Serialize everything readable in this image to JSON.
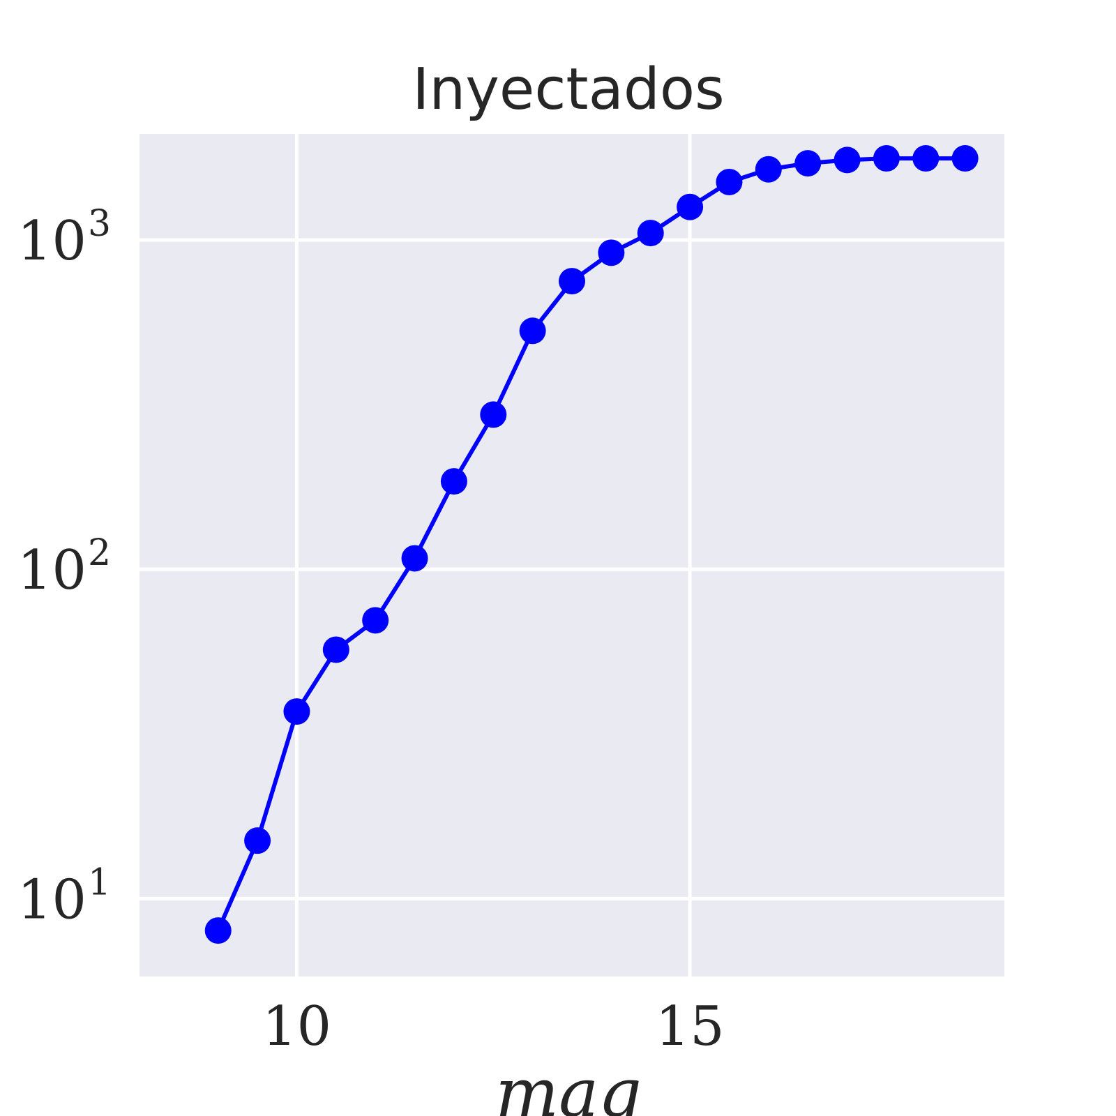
{
  "chart_data": {
    "type": "line",
    "title": "Inyectados",
    "xlabel": "mag",
    "ylabel": "",
    "yscale": "log",
    "xlim": [
      8,
      19
    ],
    "ylim": [
      5.8,
      2100
    ],
    "x_ticks": [
      10,
      15
    ],
    "y_ticks": [
      {
        "value": 10,
        "base": "10",
        "exp": "1"
      },
      {
        "value": 100,
        "base": "10",
        "exp": "2"
      },
      {
        "value": 1000,
        "base": "10",
        "exp": "3"
      }
    ],
    "grid": true,
    "background": "#eaeaf2",
    "grid_color": "#ffffff",
    "series": [
      {
        "color": "#0000ff",
        "marker": "circle",
        "x": [
          9.0,
          9.5,
          10.0,
          10.5,
          11.0,
          11.5,
          12.0,
          12.5,
          13.0,
          13.5,
          14.0,
          14.5,
          15.0,
          15.5,
          16.0,
          16.5,
          17.0,
          17.5,
          18.0,
          18.5
        ],
        "y": [
          8,
          15,
          37,
          57,
          70,
          108,
          185,
          295,
          530,
          750,
          915,
          1050,
          1260,
          1500,
          1640,
          1710,
          1750,
          1770,
          1770,
          1770
        ]
      }
    ]
  }
}
